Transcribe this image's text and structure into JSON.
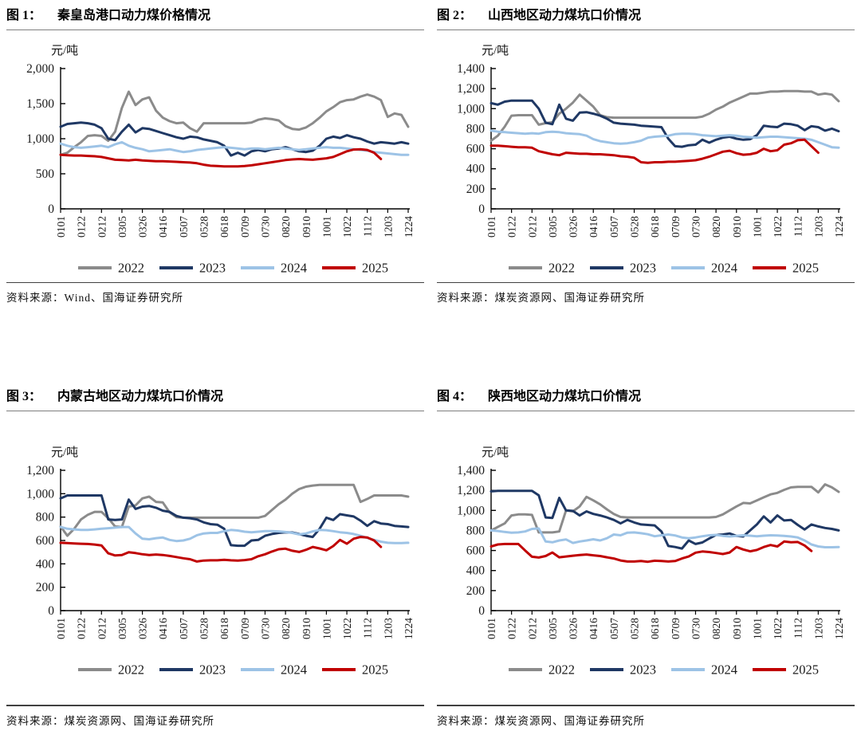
{
  "page": {
    "background": "#ffffff"
  },
  "chart_data": [
    {
      "type": "line",
      "figure_label": "图 1：",
      "title": "秦皇岛港口动力煤价格情况",
      "xlabel": "",
      "ylabel": "元/吨",
      "ylim": [
        0,
        2000
      ],
      "ytick_labels": [
        "0",
        "500",
        "1,000",
        "1,500",
        "2,000"
      ],
      "grid": "off",
      "legend_position": "bottom",
      "x_labels": [
        "0101",
        "0122",
        "0212",
        "0305",
        "0326",
        "0416",
        "0507",
        "0528",
        "0618",
        "0709",
        "0730",
        "0820",
        "0910",
        "1001",
        "1022",
        "1112",
        "1203",
        "1224"
      ],
      "source_prefix": "资料来源：",
      "source": "Wind、国海证券研究所",
      "series": [
        {
          "name": "2022",
          "color": "#8b8b8b",
          "values": [
            770,
            800,
            880,
            950,
            1040,
            1050,
            1040,
            970,
            1100,
            1440,
            1670,
            1480,
            1560,
            1590,
            1400,
            1300,
            1250,
            1220,
            1230,
            1150,
            1100,
            1220,
            1220,
            1220,
            1220,
            1220,
            1220,
            1220,
            1230,
            1270,
            1290,
            1280,
            1260,
            1180,
            1140,
            1130,
            1160,
            1220,
            1300,
            1390,
            1450,
            1520,
            1550,
            1560,
            1600,
            1630,
            1600,
            1550,
            1310,
            1360,
            1340,
            1170
          ]
        },
        {
          "name": "2023",
          "color": "#1f3864",
          "values": [
            1170,
            1210,
            1220,
            1230,
            1220,
            1200,
            1150,
            1000,
            980,
            1100,
            1200,
            1090,
            1150,
            1140,
            1110,
            1080,
            1050,
            1020,
            1000,
            1030,
            1020,
            990,
            970,
            950,
            900,
            760,
            800,
            760,
            820,
            840,
            820,
            850,
            860,
            880,
            850,
            820,
            810,
            830,
            900,
            1000,
            1030,
            1010,
            1050,
            1020,
            1000,
            960,
            930,
            950,
            940,
            930,
            950,
            930
          ]
        },
        {
          "name": "2024",
          "color": "#9dc3e6",
          "values": [
            930,
            900,
            880,
            870,
            880,
            890,
            900,
            880,
            920,
            950,
            900,
            870,
            850,
            820,
            830,
            840,
            850,
            830,
            810,
            820,
            840,
            850,
            860,
            870,
            880,
            870,
            860,
            850,
            860,
            860,
            850,
            860,
            870,
            860,
            850,
            840,
            850,
            860,
            870,
            880,
            870,
            870,
            860,
            850,
            840,
            830,
            810,
            800,
            790,
            780,
            770,
            770
          ]
        },
        {
          "name": "2025",
          "color": "#c00000",
          "values": [
            770,
            765,
            760,
            760,
            755,
            750,
            740,
            720,
            700,
            695,
            690,
            700,
            690,
            685,
            680,
            680,
            675,
            670,
            665,
            660,
            650,
            630,
            615,
            610,
            605,
            605,
            605,
            610,
            620,
            635,
            650,
            665,
            680,
            695,
            705,
            710,
            705,
            700,
            710,
            720,
            740,
            780,
            820,
            845,
            850,
            840,
            800,
            710
          ]
        }
      ]
    },
    {
      "type": "line",
      "figure_label": "图 2：",
      "title": "山西地区动力煤坑口价情况",
      "xlabel": "",
      "ylabel": "元/吨",
      "ylim": [
        0,
        1400
      ],
      "ytick_labels": [
        "0",
        "200",
        "400",
        "600",
        "800",
        "1,000",
        "1,200",
        "1,400"
      ],
      "grid": "off",
      "legend_position": "bottom",
      "x_labels": [
        "0101",
        "0122",
        "0212",
        "0305",
        "0326",
        "0416",
        "0507",
        "0528",
        "0618",
        "0709",
        "0730",
        "0820",
        "0910",
        "1001",
        "1022",
        "1112",
        "1203",
        "1224"
      ],
      "source_prefix": "资料来源：",
      "source": "煤炭资源网、国海证券研究所",
      "series": [
        {
          "name": "2022",
          "color": "#8b8b8b",
          "values": [
            680,
            730,
            820,
            930,
            935,
            935,
            935,
            840,
            855,
            865,
            950,
            1000,
            1060,
            1140,
            1080,
            1020,
            935,
            915,
            910,
            910,
            910,
            910,
            910,
            910,
            910,
            910,
            910,
            910,
            910,
            910,
            910,
            920,
            950,
            990,
            1020,
            1060,
            1090,
            1120,
            1150,
            1150,
            1160,
            1170,
            1170,
            1175,
            1175,
            1175,
            1170,
            1170,
            1140,
            1150,
            1140,
            1075
          ]
        },
        {
          "name": "2023",
          "color": "#1f3864",
          "values": [
            1055,
            1040,
            1070,
            1080,
            1080,
            1080,
            1080,
            1000,
            860,
            845,
            1040,
            900,
            880,
            960,
            965,
            950,
            930,
            900,
            860,
            850,
            845,
            840,
            830,
            825,
            820,
            815,
            700,
            625,
            620,
            635,
            640,
            690,
            660,
            690,
            710,
            720,
            700,
            690,
            695,
            735,
            830,
            820,
            815,
            850,
            845,
            830,
            785,
            825,
            815,
            780,
            800,
            775
          ]
        },
        {
          "name": "2024",
          "color": "#9dc3e6",
          "values": [
            780,
            770,
            765,
            760,
            755,
            750,
            755,
            750,
            765,
            770,
            765,
            755,
            750,
            745,
            730,
            695,
            675,
            665,
            655,
            650,
            655,
            665,
            680,
            710,
            720,
            725,
            730,
            745,
            750,
            750,
            745,
            735,
            730,
            725,
            730,
            735,
            730,
            720,
            715,
            710,
            715,
            720,
            720,
            715,
            710,
            705,
            700,
            690,
            665,
            640,
            615,
            610
          ]
        },
        {
          "name": "2025",
          "color": "#c00000",
          "values": [
            630,
            630,
            625,
            620,
            615,
            615,
            610,
            575,
            560,
            545,
            535,
            560,
            555,
            550,
            550,
            545,
            545,
            540,
            535,
            525,
            520,
            510,
            465,
            460,
            465,
            465,
            470,
            470,
            475,
            480,
            485,
            500,
            520,
            545,
            570,
            580,
            555,
            540,
            545,
            560,
            600,
            575,
            585,
            640,
            655,
            685,
            690,
            625,
            560
          ]
        }
      ]
    },
    {
      "type": "line",
      "figure_label": "图 3：",
      "title": "内蒙古地区动力煤坑口价情况",
      "xlabel": "",
      "ylabel": "元/吨",
      "ylim": [
        0,
        1200
      ],
      "ytick_labels": [
        "0",
        "200",
        "400",
        "600",
        "800",
        "1,000",
        "1,200"
      ],
      "grid": "off",
      "legend_position": "bottom",
      "x_labels": [
        "0101",
        "0122",
        "0212",
        "0305",
        "0326",
        "0416",
        "0507",
        "0528",
        "0618",
        "0709",
        "0730",
        "0820",
        "0910",
        "1001",
        "1022",
        "1112",
        "1203",
        "1224"
      ],
      "source_prefix": "资料来源：",
      "source": "煤炭资源网、国海证券研究所",
      "series": [
        {
          "name": "2022",
          "color": "#8b8b8b",
          "values": [
            720,
            640,
            700,
            780,
            820,
            845,
            845,
            790,
            720,
            715,
            890,
            900,
            960,
            975,
            930,
            925,
            840,
            800,
            795,
            795,
            795,
            795,
            795,
            795,
            795,
            795,
            795,
            795,
            795,
            795,
            810,
            860,
            910,
            950,
            1000,
            1040,
            1060,
            1070,
            1075,
            1075,
            1075,
            1075,
            1075,
            1075,
            930,
            955,
            985,
            985,
            985,
            985,
            985,
            975
          ]
        },
        {
          "name": "2023",
          "color": "#1f3864",
          "values": [
            960,
            985,
            985,
            985,
            985,
            985,
            985,
            780,
            775,
            780,
            950,
            870,
            890,
            895,
            880,
            855,
            845,
            810,
            795,
            790,
            780,
            755,
            740,
            735,
            700,
            560,
            555,
            555,
            600,
            605,
            640,
            655,
            665,
            670,
            668,
            655,
            640,
            630,
            700,
            795,
            775,
            825,
            815,
            805,
            770,
            725,
            765,
            745,
            740,
            725,
            720,
            715
          ]
        },
        {
          "name": "2024",
          "color": "#9dc3e6",
          "values": [
            715,
            700,
            695,
            690,
            690,
            695,
            700,
            705,
            710,
            715,
            715,
            660,
            615,
            610,
            620,
            625,
            605,
            595,
            600,
            615,
            645,
            660,
            665,
            665,
            680,
            690,
            685,
            675,
            670,
            675,
            680,
            680,
            678,
            672,
            665,
            652,
            660,
            678,
            690,
            688,
            680,
            670,
            665,
            655,
            640,
            622,
            605,
            590,
            580,
            578,
            578,
            580
          ]
        },
        {
          "name": "2025",
          "color": "#c00000",
          "values": [
            580,
            578,
            575,
            572,
            570,
            565,
            558,
            490,
            472,
            475,
            500,
            492,
            482,
            476,
            480,
            476,
            468,
            458,
            448,
            440,
            420,
            428,
            430,
            430,
            434,
            430,
            428,
            432,
            440,
            465,
            482,
            505,
            525,
            530,
            512,
            502,
            520,
            545,
            532,
            516,
            552,
            605,
            572,
            615,
            630,
            625,
            600,
            545
          ]
        }
      ]
    },
    {
      "type": "line",
      "figure_label": "图 4：",
      "title": "陕西地区动力煤坑口价情况",
      "xlabel": "",
      "ylabel": "元/吨",
      "ylim": [
        0,
        1400
      ],
      "ytick_labels": [
        "0",
        "200",
        "400",
        "600",
        "800",
        "1,000",
        "1,200",
        "1,400"
      ],
      "grid": "off",
      "legend_position": "bottom",
      "x_labels": [
        "0101",
        "0122",
        "0212",
        "0305",
        "0326",
        "0416",
        "0507",
        "0528",
        "0618",
        "0709",
        "0730",
        "0820",
        "0910",
        "1001",
        "1022",
        "1112",
        "1203",
        "1224"
      ],
      "source_prefix": "资料来源：",
      "source": "煤炭资源网、国海证券研究所",
      "series": [
        {
          "name": "2022",
          "color": "#8b8b8b",
          "values": [
            800,
            835,
            870,
            950,
            960,
            960,
            955,
            780,
            780,
            780,
            790,
            1000,
            990,
            1040,
            1135,
            1100,
            1060,
            1010,
            965,
            935,
            930,
            930,
            930,
            930,
            930,
            930,
            930,
            930,
            930,
            930,
            930,
            930,
            930,
            935,
            960,
            1000,
            1040,
            1075,
            1070,
            1100,
            1130,
            1160,
            1175,
            1205,
            1230,
            1235,
            1235,
            1235,
            1180,
            1260,
            1230,
            1185
          ]
        },
        {
          "name": "2023",
          "color": "#1f3864",
          "values": [
            1190,
            1195,
            1195,
            1195,
            1195,
            1195,
            1195,
            1150,
            930,
            925,
            1125,
            1000,
            995,
            950,
            990,
            965,
            950,
            930,
            905,
            870,
            905,
            880,
            860,
            855,
            850,
            790,
            645,
            635,
            620,
            700,
            665,
            680,
            720,
            755,
            760,
            770,
            745,
            740,
            800,
            860,
            940,
            880,
            950,
            900,
            905,
            855,
            810,
            860,
            840,
            825,
            815,
            800
          ]
        },
        {
          "name": "2024",
          "color": "#9dc3e6",
          "values": [
            800,
            795,
            785,
            778,
            780,
            790,
            815,
            820,
            690,
            682,
            700,
            710,
            675,
            690,
            700,
            712,
            700,
            722,
            760,
            752,
            778,
            780,
            772,
            762,
            742,
            752,
            760,
            750,
            730,
            722,
            730,
            742,
            752,
            756,
            746,
            740,
            745,
            752,
            748,
            742,
            748,
            752,
            750,
            745,
            740,
            730,
            700,
            660,
            640,
            632,
            632,
            635
          ]
        },
        {
          "name": "2025",
          "color": "#c00000",
          "values": [
            640,
            660,
            665,
            665,
            665,
            600,
            538,
            530,
            545,
            580,
            532,
            540,
            548,
            555,
            560,
            552,
            545,
            532,
            520,
            500,
            490,
            490,
            495,
            488,
            498,
            495,
            490,
            495,
            520,
            540,
            578,
            590,
            585,
            575,
            565,
            580,
            635,
            610,
            592,
            605,
            635,
            655,
            640,
            690,
            682,
            685,
            650,
            595
          ]
        }
      ]
    }
  ]
}
